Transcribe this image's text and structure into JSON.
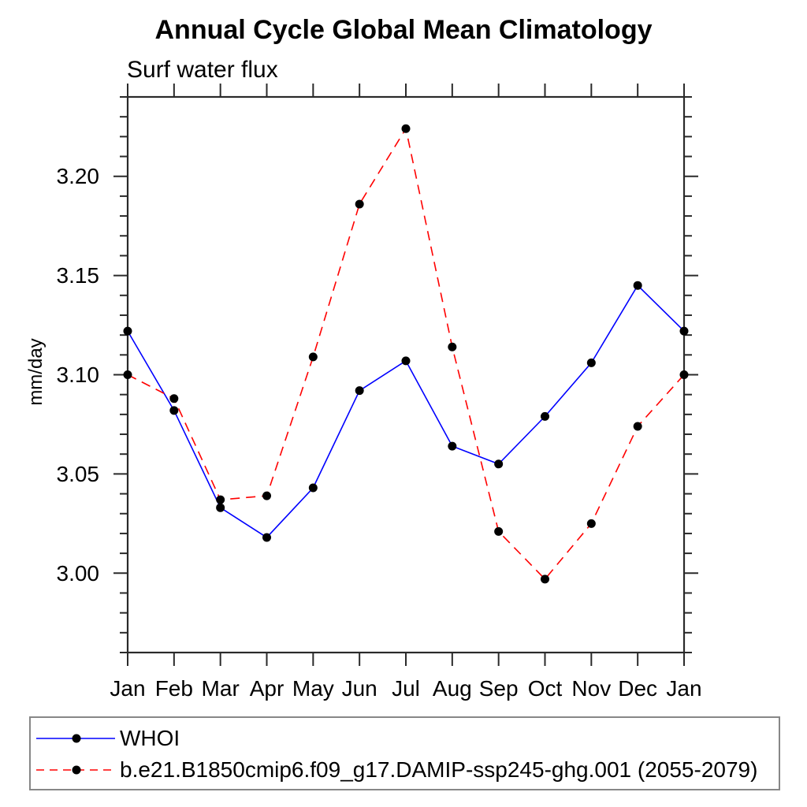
{
  "chart_data": {
    "type": "line",
    "title": "Annual Cycle Global Mean Climatology",
    "subtitle": "Surf water flux",
    "ylabel": "mm/day",
    "xlabel": "",
    "categories": [
      "Jan",
      "Feb",
      "Mar",
      "Apr",
      "May",
      "Jun",
      "Jul",
      "Aug",
      "Sep",
      "Oct",
      "Nov",
      "Dec",
      "Jan"
    ],
    "ylim": [
      2.96,
      3.24
    ],
    "yticks_major": [
      3.0,
      3.05,
      3.1,
      3.15,
      3.2
    ],
    "ytick_labels": [
      "3.00",
      "3.05",
      "3.10",
      "3.15",
      "3.20"
    ],
    "y_minor_step": 0.01,
    "grid": false,
    "legend_position": "bottom-left-box",
    "series": [
      {
        "name": "WHOI",
        "color": "#0000ff",
        "style": "solid",
        "marker": "filled-circle",
        "marker_color": "#000000",
        "values": [
          3.122,
          3.082,
          3.033,
          3.018,
          3.043,
          3.092,
          3.107,
          3.064,
          3.055,
          3.079,
          3.106,
          3.145,
          3.122
        ]
      },
      {
        "name": "b.e21.B1850cmip6.f09_g17.DAMIP-ssp245-ghg.001 (2055-2079)",
        "color": "#ff0000",
        "style": "dashed",
        "marker": "filled-circle",
        "marker_color": "#000000",
        "values": [
          3.1,
          3.088,
          3.037,
          3.039,
          3.109,
          3.186,
          3.224,
          3.114,
          3.021,
          2.997,
          3.025,
          3.074,
          3.1
        ]
      }
    ]
  },
  "colors": {
    "background": "#ffffff",
    "axis": "#2a2a2a",
    "text": "#000000",
    "series_blue": "#0000ff",
    "series_red": "#ff0000",
    "marker": "#000000"
  }
}
